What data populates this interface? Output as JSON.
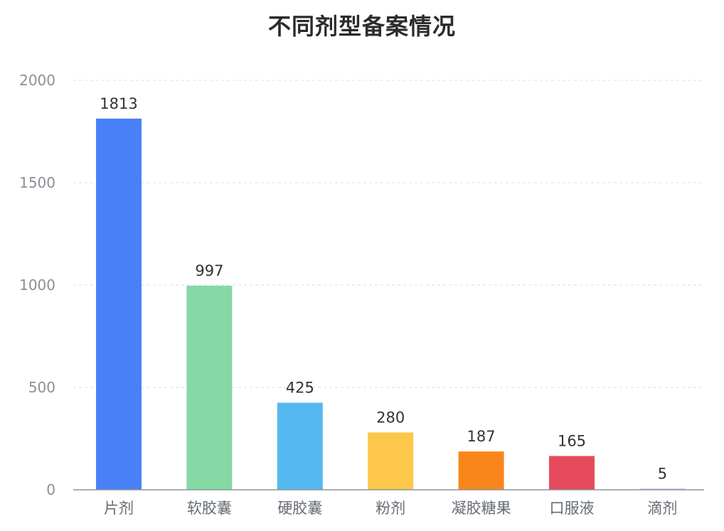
{
  "chart_data": {
    "type": "bar",
    "title": "不同剂型备案情况",
    "xlabel": "",
    "ylabel": "",
    "ylim": [
      0,
      2000
    ],
    "yticks": [
      0,
      500,
      1000,
      1500,
      2000
    ],
    "grid": true,
    "categories": [
      "片剂",
      "软胶囊",
      "硬胶囊",
      "粉剂",
      "凝胶糖果",
      "口服液",
      "滴剂"
    ],
    "values": [
      1813,
      997,
      425,
      280,
      187,
      165,
      5
    ],
    "colors": [
      "#4a80f7",
      "#86d9a4",
      "#54b9f0",
      "#fdc74a",
      "#f9861a",
      "#e64a5d",
      "#a9b9ee"
    ]
  }
}
